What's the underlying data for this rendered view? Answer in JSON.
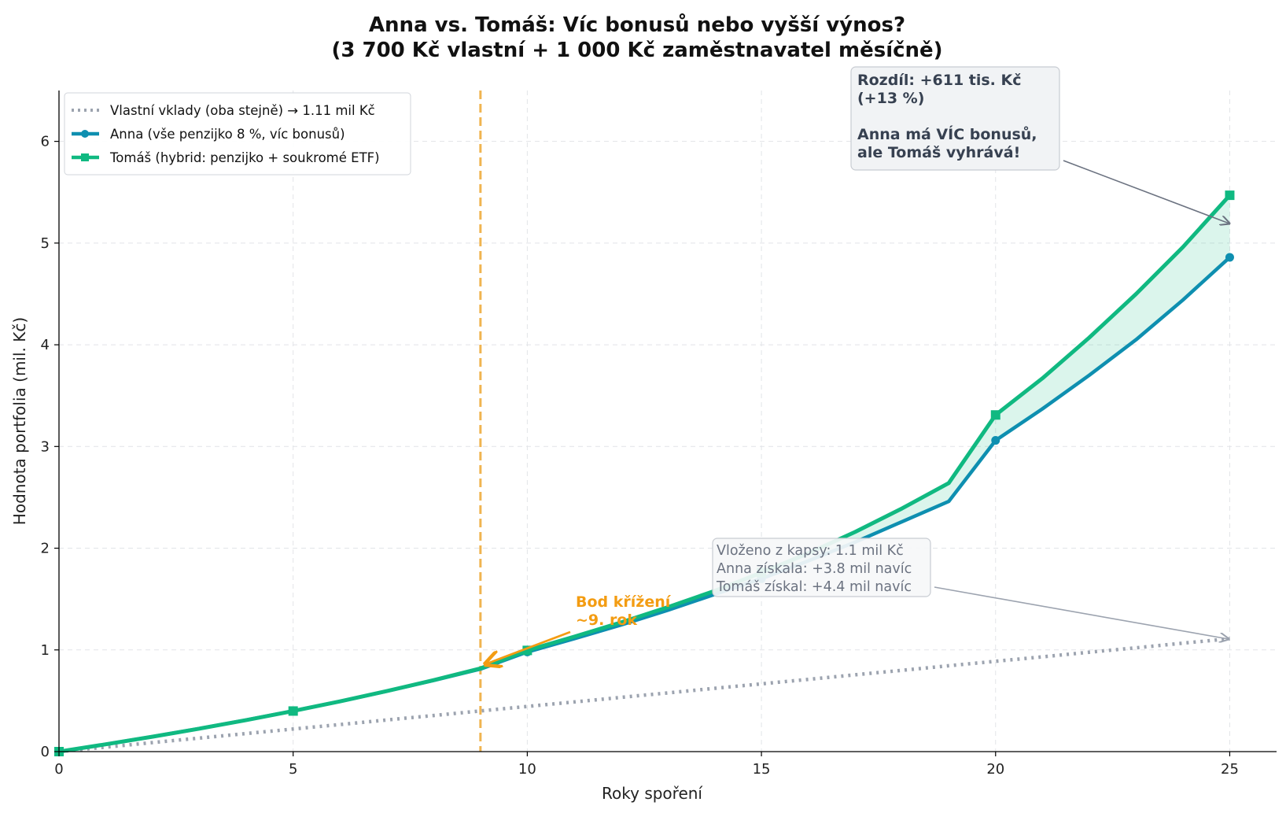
{
  "chart_data": {
    "type": "line",
    "title": "Anna vs. Tomáš: Víc bonusů nebo vyšší výnos?",
    "subtitle": "(3 700 Kč vlastní + 1 000 Kč zaměstnavatel měsíčně)",
    "xlabel": "Roky spoření",
    "ylabel": "Hodnota portfolia (mil. Kč)",
    "xlim": [
      0,
      26
    ],
    "ylim": [
      0,
      6.5
    ],
    "xticks": [
      "0",
      "5",
      "10",
      "15",
      "20",
      "25"
    ],
    "yticks": [
      "0",
      "1",
      "2",
      "3",
      "4",
      "5",
      "6"
    ],
    "grid": true,
    "legend_position": "top-left",
    "x": [
      0,
      1,
      2,
      3,
      4,
      5,
      6,
      7,
      8,
      9,
      10,
      11,
      12,
      13,
      14,
      15,
      16,
      17,
      18,
      19,
      20,
      21,
      22,
      23,
      24,
      25
    ],
    "series": [
      {
        "name": "Vlastní vklady (oba stejně) → 1.11 mil Kč",
        "color": "#9ca3af",
        "style": "dotted",
        "values": [
          0,
          0.044,
          0.089,
          0.133,
          0.178,
          0.222,
          0.266,
          0.311,
          0.355,
          0.4,
          0.444,
          0.488,
          0.533,
          0.577,
          0.622,
          0.666,
          0.71,
          0.755,
          0.799,
          0.844,
          0.888,
          0.932,
          0.977,
          1.021,
          1.066,
          1.11
        ]
      },
      {
        "name": "Anna (vše penzijko 8 %, víc bonusů)",
        "color": "#0e8fb0",
        "style": "solid",
        "marker": "circle",
        "marker_every": 5,
        "values": [
          0,
          0.072,
          0.147,
          0.227,
          0.311,
          0.4,
          0.494,
          0.594,
          0.7,
          0.812,
          0.98,
          1.11,
          1.245,
          1.39,
          1.545,
          1.7,
          1.875,
          2.06,
          2.26,
          2.46,
          3.06,
          3.37,
          3.7,
          4.05,
          4.44,
          4.86
        ]
      },
      {
        "name": "Tomáš (hybrid: penzijko + soukromé ETF)",
        "color": "#10b981",
        "style": "solid",
        "marker": "square",
        "marker_every": 5,
        "values": [
          0,
          0.072,
          0.147,
          0.226,
          0.31,
          0.399,
          0.494,
          0.595,
          0.703,
          0.818,
          0.995,
          1.13,
          1.27,
          1.42,
          1.58,
          1.76,
          1.95,
          2.16,
          2.39,
          2.64,
          3.31,
          3.67,
          4.07,
          4.5,
          4.96,
          5.47
        ]
      }
    ],
    "annotations": {
      "crossover": {
        "lines": [
          "Bod křížení",
          "~9. rok"
        ],
        "x": 9,
        "color": "#f39c12",
        "line_color": "#f0b450"
      },
      "difference": {
        "lines": [
          "Rozdíl: +611 tis. Kč",
          "(+13 %)",
          "",
          "Anna má VÍC bonusů,",
          "ale Tomáš vyhrává!"
        ]
      },
      "summary": {
        "lines": [
          "Vloženo z kapsy: 1.1 mil Kč",
          "Anna získala: +3.8 mil navíc",
          "Tomáš získal: +4.4 mil navíc"
        ]
      }
    }
  }
}
